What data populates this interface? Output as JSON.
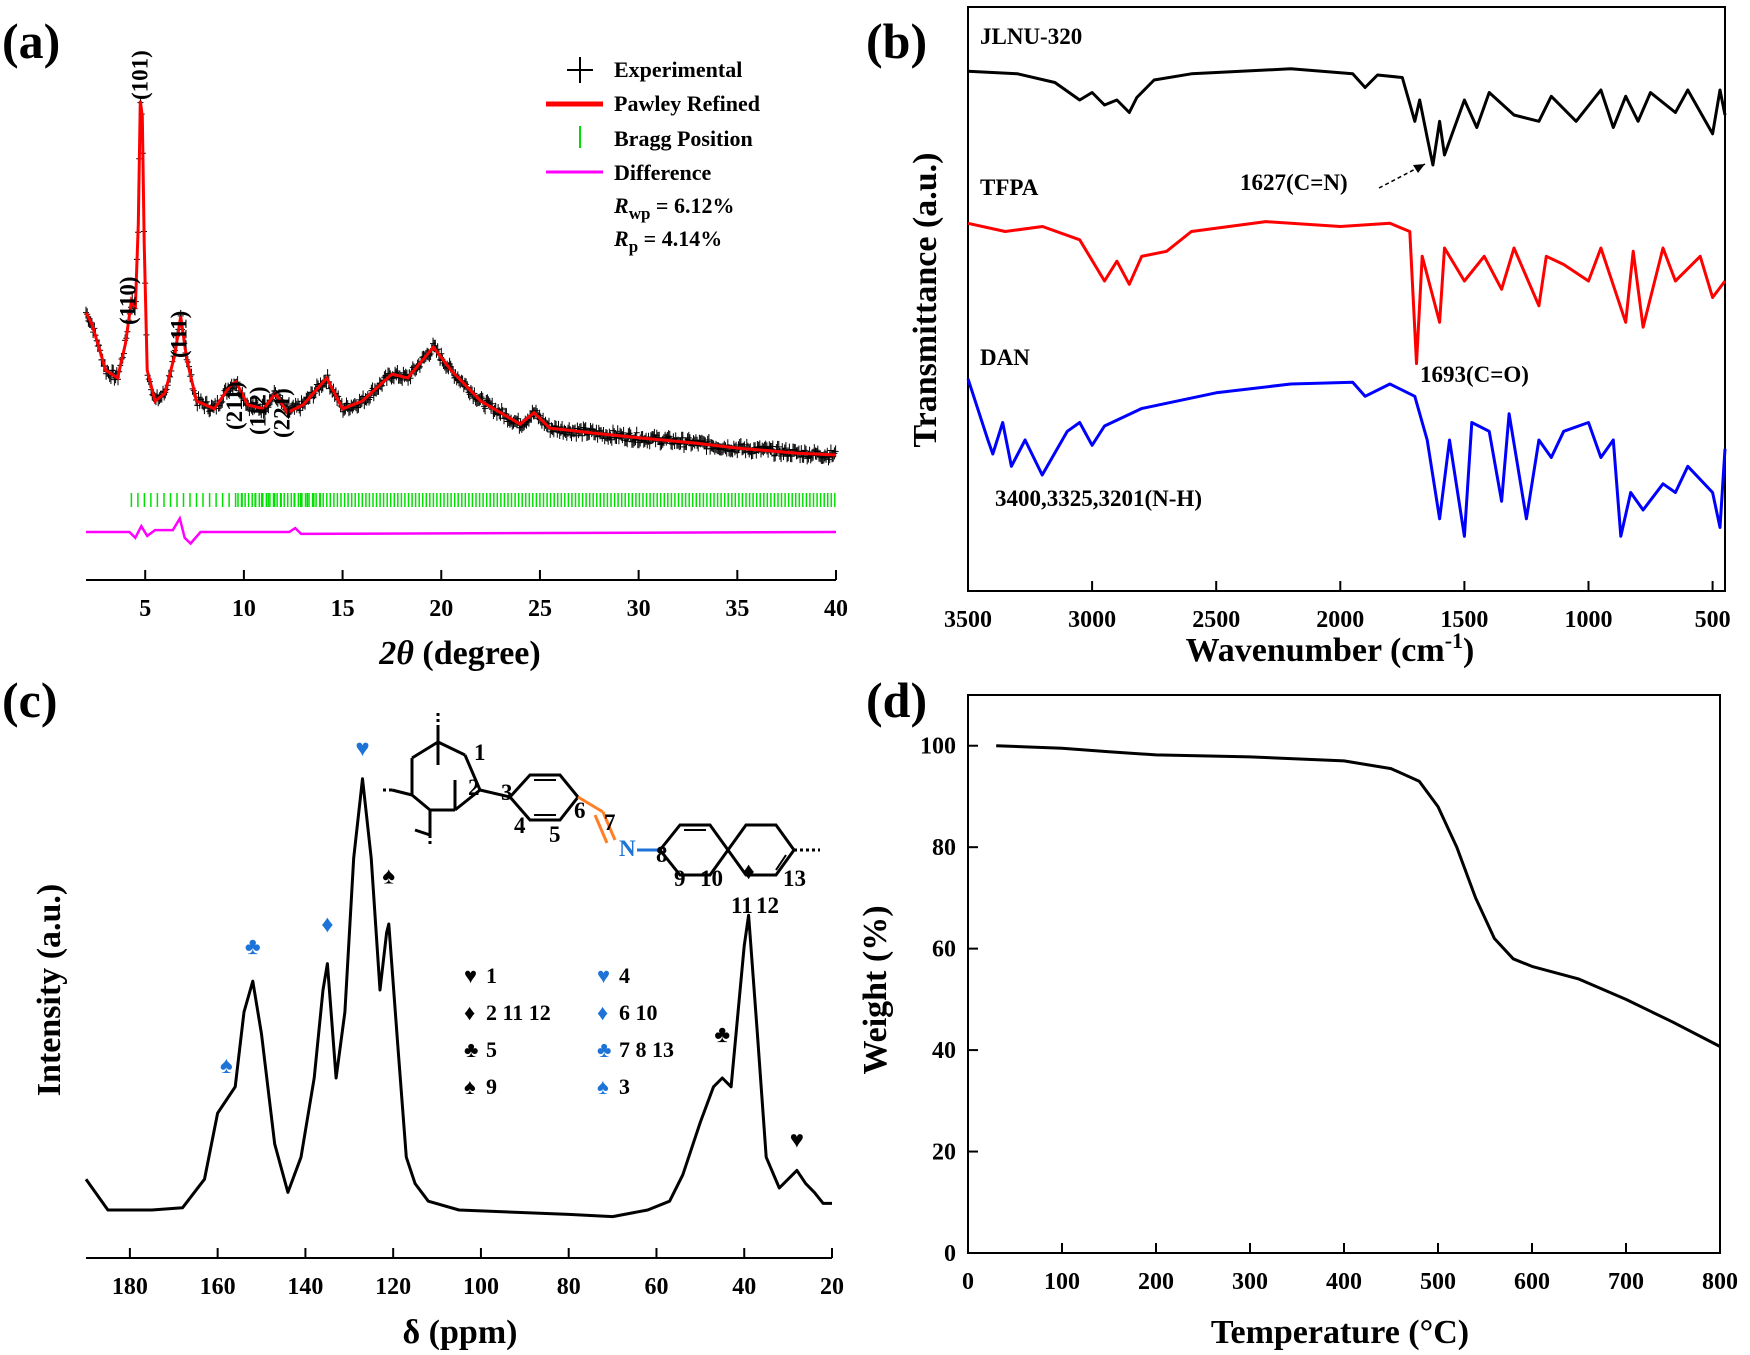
{
  "panel_labels": [
    "(a)",
    "(b)",
    "(c)",
    "(d)"
  ],
  "chart_data": [
    {
      "panel": "(a)",
      "type": "line",
      "xlabel_var": "2θ",
      "xlabel_unit": "(degree)",
      "xlim": [
        2,
        40
      ],
      "x_ticks": [
        5,
        10,
        15,
        20,
        25,
        30,
        35,
        40
      ],
      "y_ticks_shown": false,
      "legend": {
        "position": "top-right",
        "entries": [
          "Experimental",
          "Pawley Refined",
          "Bragg Position",
          "Difference"
        ],
        "stats": [
          {
            "sym": "R",
            "sub": "wp",
            "text": " = 6.12%"
          },
          {
            "sym": "R",
            "sub": "p",
            "text": " = 4.14%"
          }
        ]
      },
      "peak_labels": [
        {
          "x": 4.2,
          "text": "(110)"
        },
        {
          "x": 4.8,
          "text": "(101)"
        },
        {
          "x": 6.8,
          "text": "(111)"
        },
        {
          "x": 9.6,
          "text": "(211)"
        },
        {
          "x": 10.8,
          "text": "(112)"
        },
        {
          "x": 12.0,
          "text": "(221)"
        }
      ],
      "pawley_points": [
        [
          2,
          0.37
        ],
        [
          2.3,
          0.34
        ],
        [
          3,
          0.22
        ],
        [
          3.6,
          0.2
        ],
        [
          4.0,
          0.29
        ],
        [
          4.3,
          0.4
        ],
        [
          4.5,
          0.38
        ],
        [
          4.65,
          0.6
        ],
        [
          4.75,
          0.92
        ],
        [
          4.85,
          0.88
        ],
        [
          4.95,
          0.55
        ],
        [
          5.1,
          0.22
        ],
        [
          5.5,
          0.14
        ],
        [
          6.0,
          0.16
        ],
        [
          6.5,
          0.26
        ],
        [
          6.8,
          0.36
        ],
        [
          7.1,
          0.25
        ],
        [
          7.6,
          0.14
        ],
        [
          8.5,
          0.12
        ],
        [
          9.3,
          0.18
        ],
        [
          9.6,
          0.19
        ],
        [
          10.2,
          0.13
        ],
        [
          11.0,
          0.12
        ],
        [
          11.6,
          0.16
        ],
        [
          12.2,
          0.11
        ],
        [
          13.0,
          0.13
        ],
        [
          14.2,
          0.2
        ],
        [
          15.0,
          0.12
        ],
        [
          16.0,
          0.14
        ],
        [
          17.5,
          0.21
        ],
        [
          18.3,
          0.2
        ],
        [
          19.6,
          0.28
        ],
        [
          20.5,
          0.22
        ],
        [
          22.0,
          0.14
        ],
        [
          24.0,
          0.08
        ],
        [
          24.7,
          0.11
        ],
        [
          25.5,
          0.07
        ],
        [
          28,
          0.055
        ],
        [
          30,
          0.045
        ],
        [
          33,
          0.03
        ],
        [
          35,
          0.018
        ],
        [
          38,
          0.005
        ],
        [
          40,
          0.0
        ]
      ],
      "difference_points": [
        [
          2,
          -0.2
        ],
        [
          4.2,
          -0.2
        ],
        [
          4.5,
          -0.215
        ],
        [
          4.8,
          -0.185
        ],
        [
          5.1,
          -0.21
        ],
        [
          5.5,
          -0.195
        ],
        [
          6.4,
          -0.195
        ],
        [
          6.75,
          -0.165
        ],
        [
          7.0,
          -0.215
        ],
        [
          7.3,
          -0.23
        ],
        [
          7.8,
          -0.2
        ],
        [
          12.3,
          -0.2
        ],
        [
          12.6,
          -0.19
        ],
        [
          12.9,
          -0.205
        ],
        [
          40,
          -0.2
        ]
      ]
    },
    {
      "panel": "(b)",
      "type": "line",
      "xlabel": "Wavenumber (cm",
      "xlabel_sup": "-1",
      "xlabel_end": ")",
      "ylabel": "Transmittance (a.u.)",
      "xlim": [
        3500,
        450
      ],
      "x_ticks": [
        3500,
        3000,
        2500,
        2000,
        1500,
        1000,
        500
      ],
      "annotations": [
        {
          "x": 1627,
          "text": "1627(C=N)"
        },
        {
          "x": 1693,
          "text": "1693(C=O)"
        },
        {
          "x": 3300,
          "text": "3400,3325,3201(N-H)"
        }
      ],
      "series": [
        {
          "name": "JLNU-320",
          "color": "#000000",
          "points": [
            [
              3500,
              0.95
            ],
            [
              3300,
              0.93
            ],
            [
              3150,
              0.86
            ],
            [
              3050,
              0.72
            ],
            [
              3000,
              0.78
            ],
            [
              2950,
              0.68
            ],
            [
              2900,
              0.72
            ],
            [
              2850,
              0.62
            ],
            [
              2820,
              0.74
            ],
            [
              2750,
              0.88
            ],
            [
              2600,
              0.93
            ],
            [
              2200,
              0.97
            ],
            [
              1950,
              0.93
            ],
            [
              1900,
              0.82
            ],
            [
              1850,
              0.92
            ],
            [
              1750,
              0.9
            ],
            [
              1700,
              0.55
            ],
            [
              1680,
              0.72
            ],
            [
              1650,
              0.42
            ],
            [
              1627,
              0.2
            ],
            [
              1600,
              0.55
            ],
            [
              1580,
              0.28
            ],
            [
              1500,
              0.72
            ],
            [
              1450,
              0.5
            ],
            [
              1400,
              0.78
            ],
            [
              1300,
              0.6
            ],
            [
              1200,
              0.55
            ],
            [
              1150,
              0.75
            ],
            [
              1050,
              0.55
            ],
            [
              950,
              0.8
            ],
            [
              900,
              0.5
            ],
            [
              850,
              0.75
            ],
            [
              800,
              0.55
            ],
            [
              750,
              0.78
            ],
            [
              650,
              0.62
            ],
            [
              600,
              0.8
            ],
            [
              500,
              0.45
            ],
            [
              470,
              0.8
            ],
            [
              450,
              0.6
            ]
          ]
        },
        {
          "name": "TFPA",
          "color": "#ff0000",
          "points": [
            [
              3500,
              0.95
            ],
            [
              3350,
              0.9
            ],
            [
              3200,
              0.93
            ],
            [
              3050,
              0.85
            ],
            [
              2950,
              0.6
            ],
            [
              2900,
              0.72
            ],
            [
              2850,
              0.58
            ],
            [
              2800,
              0.75
            ],
            [
              2700,
              0.78
            ],
            [
              2600,
              0.9
            ],
            [
              2300,
              0.96
            ],
            [
              2000,
              0.93
            ],
            [
              1800,
              0.95
            ],
            [
              1720,
              0.9
            ],
            [
              1693,
              0.1
            ],
            [
              1670,
              0.75
            ],
            [
              1600,
              0.35
            ],
            [
              1580,
              0.8
            ],
            [
              1500,
              0.6
            ],
            [
              1420,
              0.75
            ],
            [
              1350,
              0.55
            ],
            [
              1300,
              0.8
            ],
            [
              1200,
              0.45
            ],
            [
              1170,
              0.75
            ],
            [
              1100,
              0.7
            ],
            [
              1000,
              0.6
            ],
            [
              950,
              0.8
            ],
            [
              850,
              0.35
            ],
            [
              820,
              0.78
            ],
            [
              780,
              0.32
            ],
            [
              700,
              0.8
            ],
            [
              650,
              0.6
            ],
            [
              550,
              0.75
            ],
            [
              500,
              0.5
            ],
            [
              450,
              0.6
            ]
          ]
        },
        {
          "name": "DAN",
          "color": "#0000ff",
          "points": [
            [
              3500,
              0.95
            ],
            [
              3420,
              0.6
            ],
            [
              3400,
              0.52
            ],
            [
              3360,
              0.7
            ],
            [
              3325,
              0.45
            ],
            [
              3270,
              0.6
            ],
            [
              3201,
              0.4
            ],
            [
              3100,
              0.65
            ],
            [
              3050,
              0.7
            ],
            [
              3000,
              0.57
            ],
            [
              2950,
              0.68
            ],
            [
              2800,
              0.78
            ],
            [
              2500,
              0.87
            ],
            [
              2200,
              0.92
            ],
            [
              1950,
              0.93
            ],
            [
              1900,
              0.85
            ],
            [
              1800,
              0.92
            ],
            [
              1700,
              0.85
            ],
            [
              1650,
              0.6
            ],
            [
              1600,
              0.15
            ],
            [
              1560,
              0.6
            ],
            [
              1500,
              0.05
            ],
            [
              1470,
              0.7
            ],
            [
              1400,
              0.65
            ],
            [
              1350,
              0.25
            ],
            [
              1320,
              0.75
            ],
            [
              1250,
              0.15
            ],
            [
              1200,
              0.6
            ],
            [
              1150,
              0.5
            ],
            [
              1100,
              0.65
            ],
            [
              1000,
              0.7
            ],
            [
              950,
              0.5
            ],
            [
              900,
              0.6
            ],
            [
              870,
              0.05
            ],
            [
              830,
              0.3
            ],
            [
              780,
              0.2
            ],
            [
              700,
              0.35
            ],
            [
              650,
              0.3
            ],
            [
              600,
              0.45
            ],
            [
              500,
              0.3
            ],
            [
              470,
              0.1
            ],
            [
              450,
              0.55
            ]
          ]
        }
      ]
    },
    {
      "panel": "(c)",
      "type": "line",
      "xlabel": "δ (ppm)",
      "ylabel": "Intensity (a.u.)",
      "xlim": [
        190,
        20
      ],
      "x_ticks": [
        180,
        160,
        140,
        120,
        100,
        80,
        60,
        40,
        20
      ],
      "legend_entries": [
        {
          "sym": "♥",
          "color": "#000000",
          "text": "1"
        },
        {
          "sym": "♦",
          "color": "#000000",
          "text": "2 11 12"
        },
        {
          "sym": "♣",
          "color": "#000000",
          "text": "5"
        },
        {
          "sym": "♠",
          "color": "#000000",
          "text": "9"
        },
        {
          "sym": "♥",
          "color": "#1e73d8",
          "text": "4"
        },
        {
          "sym": "♦",
          "color": "#1e73d8",
          "text": "6 10"
        },
        {
          "sym": "♣",
          "color": "#1e73d8",
          "text": "7 8 13"
        },
        {
          "sym": "♠",
          "color": "#1e73d8",
          "text": "3"
        }
      ],
      "peak_markers": [
        {
          "x": 158,
          "y": 0.28,
          "sym": "♠",
          "color": "#1e73d8"
        },
        {
          "x": 152,
          "y": 0.55,
          "sym": "♣",
          "color": "#1e73d8"
        },
        {
          "x": 135,
          "y": 0.6,
          "sym": "♦",
          "color": "#1e73d8"
        },
        {
          "x": 127,
          "y": 1.0,
          "sym": "♥",
          "color": "#1e73d8"
        },
        {
          "x": 121,
          "y": 0.71,
          "sym": "♠",
          "color": "#000000"
        },
        {
          "x": 45,
          "y": 0.35,
          "sym": "♣",
          "color": "#000000"
        },
        {
          "x": 39,
          "y": 0.72,
          "sym": "♦",
          "color": "#000000"
        },
        {
          "x": 28,
          "y": 0.11,
          "sym": "♥",
          "color": "#000000"
        }
      ],
      "structure_atom_labels": [
        "1",
        "2",
        "3",
        "4",
        "5",
        "6",
        "7",
        "N",
        "8",
        "9",
        "10",
        "11",
        "12",
        "13"
      ],
      "points": [
        [
          190,
          0.07
        ],
        [
          185,
          0.0
        ],
        [
          175,
          0.0
        ],
        [
          168,
          0.005
        ],
        [
          163,
          0.07
        ],
        [
          160,
          0.22
        ],
        [
          158,
          0.25
        ],
        [
          156,
          0.28
        ],
        [
          154,
          0.45
        ],
        [
          152,
          0.52
        ],
        [
          150,
          0.4
        ],
        [
          147,
          0.15
        ],
        [
          144,
          0.04
        ],
        [
          141,
          0.12
        ],
        [
          138,
          0.3
        ],
        [
          136,
          0.5
        ],
        [
          135,
          0.56
        ],
        [
          133,
          0.3
        ],
        [
          131,
          0.45
        ],
        [
          129,
          0.8
        ],
        [
          127,
          0.98
        ],
        [
          125,
          0.8
        ],
        [
          123,
          0.5
        ],
        [
          121.5,
          0.63
        ],
        [
          121,
          0.65
        ],
        [
          119,
          0.38
        ],
        [
          117,
          0.12
        ],
        [
          115,
          0.06
        ],
        [
          112,
          0.02
        ],
        [
          105,
          0.0
        ],
        [
          80,
          -0.01
        ],
        [
          70,
          -0.015
        ],
        [
          62,
          0.0
        ],
        [
          57,
          0.02
        ],
        [
          54,
          0.08
        ],
        [
          50,
          0.2
        ],
        [
          47,
          0.28
        ],
        [
          45,
          0.3
        ],
        [
          43,
          0.28
        ],
        [
          40,
          0.6
        ],
        [
          39,
          0.67
        ],
        [
          37,
          0.4
        ],
        [
          35,
          0.12
        ],
        [
          32,
          0.05
        ],
        [
          29,
          0.08
        ],
        [
          28,
          0.09
        ],
        [
          26,
          0.06
        ],
        [
          24,
          0.04
        ],
        [
          22,
          0.015
        ],
        [
          20,
          0.015
        ]
      ]
    },
    {
      "panel": "(d)",
      "type": "line",
      "xlabel": "Temperature (°C)",
      "ylabel": "Weight (%)",
      "xlim": [
        0,
        800
      ],
      "ylim": [
        0,
        110
      ],
      "x_ticks": [
        0,
        100,
        200,
        300,
        400,
        500,
        600,
        700,
        800
      ],
      "y_ticks": [
        0,
        20,
        40,
        60,
        80,
        100
      ],
      "points": [
        [
          30,
          100
        ],
        [
          100,
          99.5
        ],
        [
          150,
          98.8
        ],
        [
          200,
          98.2
        ],
        [
          300,
          97.8
        ],
        [
          400,
          97.0
        ],
        [
          450,
          95.5
        ],
        [
          480,
          93
        ],
        [
          500,
          88
        ],
        [
          520,
          80
        ],
        [
          540,
          70
        ],
        [
          560,
          62
        ],
        [
          580,
          58
        ],
        [
          600,
          56.5
        ],
        [
          650,
          54
        ],
        [
          700,
          50
        ],
        [
          750,
          45.5
        ],
        [
          800,
          40.7
        ]
      ]
    }
  ]
}
